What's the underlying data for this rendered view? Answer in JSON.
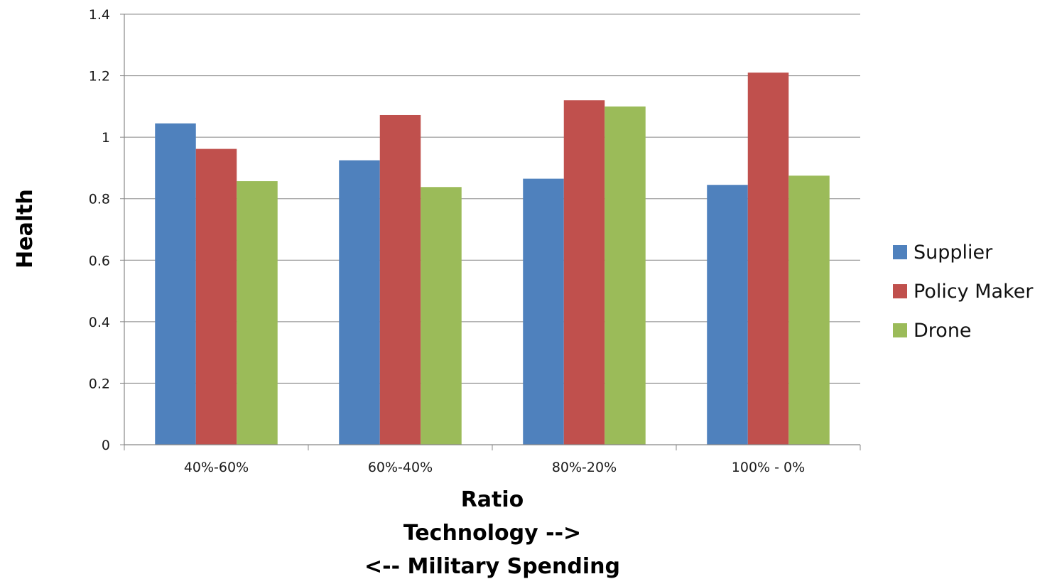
{
  "chart_data": {
    "type": "bar",
    "categories": [
      "40%-60%",
      "60%-40%",
      "80%-20%",
      "100% - 0%"
    ],
    "series": [
      {
        "name": "Supplier",
        "color": "#4F81BD",
        "values": [
          1.045,
          0.925,
          0.865,
          0.845
        ]
      },
      {
        "name": "Policy Maker",
        "color": "#C0504D",
        "values": [
          0.962,
          1.072,
          1.12,
          1.21
        ]
      },
      {
        "name": "Drone",
        "color": "#9BBB59",
        "values": [
          0.857,
          0.838,
          1.1,
          0.875
        ]
      }
    ],
    "ylabel": "Health",
    "xlabel_lines": [
      "Ratio",
      "Technology -->",
      "<-- Military Spending"
    ],
    "ylim": [
      0,
      1.4
    ],
    "yticks": [
      0,
      0.2,
      0.4,
      0.6,
      0.8,
      1,
      1.2,
      1.4
    ],
    "ytick_labels": [
      "0",
      "0.2",
      "0.4",
      "0.6",
      "0.8",
      "1",
      "1.2",
      "1.4"
    ],
    "grid": true,
    "legend_position": "right"
  }
}
